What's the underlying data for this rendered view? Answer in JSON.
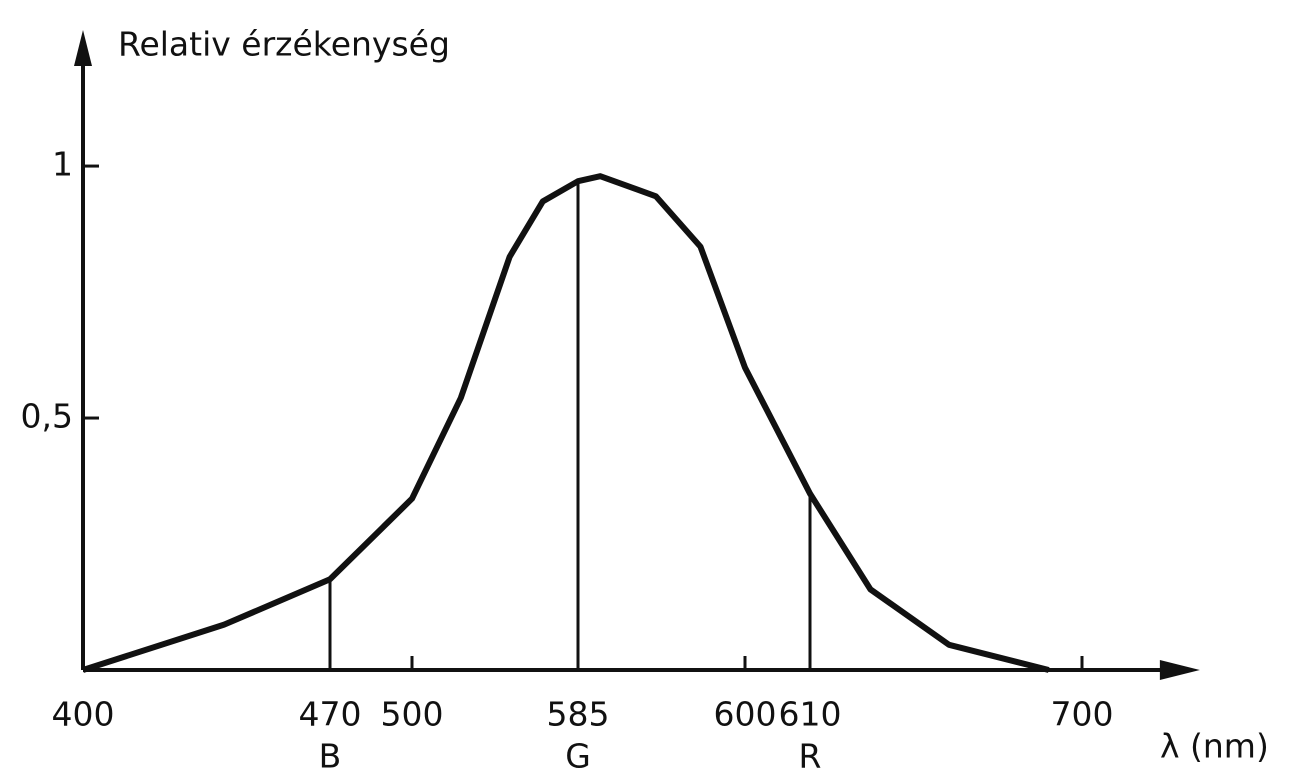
{
  "chart_data": {
    "type": "line",
    "y_label": "Relativ érzékenység",
    "x_label": "λ (nm)",
    "x": [
      400,
      440,
      470,
      500,
      525,
      550,
      567,
      585,
      587,
      592,
      596,
      600,
      610,
      630,
      656,
      689
    ],
    "series": [
      {
        "color": "#111111",
        "values": [
          0,
          0.09,
          0.18,
          0.34,
          0.54,
          0.82,
          0.93,
          0.97,
          0.98,
          0.94,
          0.84,
          0.6,
          0.35,
          0.16,
          0.05,
          0
        ]
      }
    ],
    "markers": [
      {
        "x": 470,
        "label": "B"
      },
      {
        "x": 585,
        "label": "G"
      },
      {
        "x": 610,
        "label": "R"
      }
    ],
    "xlim": [
      400,
      739
    ],
    "xticks": [
      400,
      470,
      500,
      585,
      600,
      610,
      700
    ],
    "ylim": [
      0,
      1.27
    ],
    "yticks": [
      {
        "value": 0.5,
        "label": "0,5"
      },
      1
    ],
    "grid": false
  }
}
